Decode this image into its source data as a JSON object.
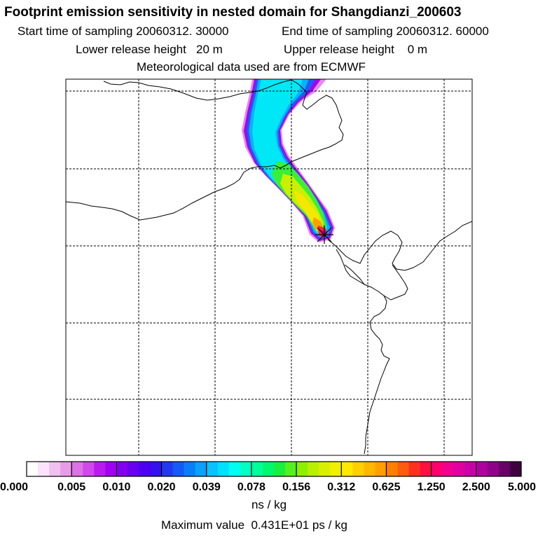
{
  "header": {
    "title": "Footprint emission sensitivity in nested domain for Shangdianzi_200603",
    "start_time": "Start time of sampling 20060312. 30000",
    "end_time": "End time of sampling 20060312. 60000",
    "lower_release": "Lower release height   20 m",
    "upper_release": "Upper release height    0 m",
    "met_data": "Meteorological data used are from ECMWF"
  },
  "map": {
    "station_marker": "station-star-icon",
    "coastline_color": "#000000",
    "grid_style": "dashed"
  },
  "colorbar": {
    "tick_labels": [
      "0.000",
      "0.005",
      "0.010",
      "0.020",
      "0.039",
      "0.078",
      "0.156",
      "0.312",
      "0.625",
      "1.250",
      "2.500",
      "5.000"
    ],
    "colors": [
      "#ffffff",
      "#fbe4fb",
      "#f0c0f0",
      "#e89ce8",
      "#dd72e6",
      "#cf48ea",
      "#bb1aef",
      "#a200f2",
      "#8400f0",
      "#6a00f0",
      "#4e00f0",
      "#3311f0",
      "#2238f2",
      "#145bf5",
      "#0a7ef8",
      "#0aa0fb",
      "#0ac2fd",
      "#00e0ff",
      "#00fff0",
      "#00ffc4",
      "#00ff9a",
      "#00f870",
      "#18f040",
      "#55f020",
      "#8cf000",
      "#b8f000",
      "#d8f000",
      "#f0f000",
      "#ffe800",
      "#ffd000",
      "#ffb800",
      "#ffa000",
      "#ff8000",
      "#ff5c10",
      "#ff3020",
      "#ff1040",
      "#ff0070",
      "#f00090",
      "#e000a0",
      "#c800a8",
      "#b000a0",
      "#900088",
      "#680068",
      "#400040"
    ],
    "unit": "ns / kg",
    "max_value": "Maximum value  0.431E+01 ps / kg"
  }
}
